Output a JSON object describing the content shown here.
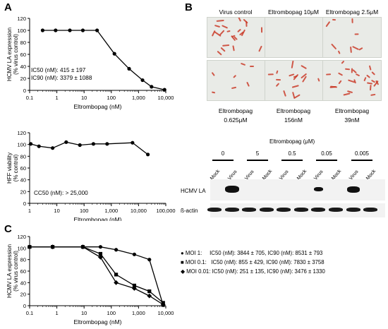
{
  "panels": {
    "A": "A",
    "B": "B",
    "C": "C"
  },
  "chart_data": [
    {
      "type": "line",
      "id": "A_top",
      "xlabel": "Eltrombopag (nM)",
      "ylabel": "HCMV LA expression\n(% virus control)",
      "xscale": "log",
      "xlim": [
        0.1,
        10000
      ],
      "ylim": [
        0,
        120
      ],
      "xticks": [
        "0.1",
        "1",
        "10",
        "100",
        "1,000",
        "10,000"
      ],
      "yticks": [
        "0",
        "20",
        "40",
        "60",
        "80",
        "100",
        "120"
      ],
      "series": [
        {
          "x": [
            0.3,
            0.9,
            3,
            9,
            30,
            130,
            450,
            1400,
            3000,
            9000
          ],
          "y": [
            100,
            100,
            100,
            100,
            100,
            61,
            36,
            17,
            6,
            1
          ]
        }
      ],
      "annotation_lines": [
        "IC50 (nM): 415 ± 197",
        "IC90 (nM): 3379 ± 1088"
      ]
    },
    {
      "type": "line",
      "id": "A_bottom",
      "xlabel": "Eltrombopag (nM)",
      "ylabel": "HFF viability\n(% control)",
      "xscale": "log",
      "xlim": [
        1,
        100000
      ],
      "ylim": [
        0,
        120
      ],
      "xticks": [
        "1",
        "10",
        "100",
        "1,000",
        "10,000",
        "100,000"
      ],
      "yticks": [
        "0",
        "20",
        "40",
        "60",
        "80",
        "100",
        "120"
      ],
      "series": [
        {
          "x": [
            1.1,
            2.2,
            7,
            22,
            70,
            220,
            700,
            6000,
            22000
          ],
          "y": [
            101,
            97,
            94,
            104,
            99,
            101,
            101,
            103,
            83
          ]
        }
      ],
      "annotation_lines": [
        "CC50 (nM): > 25,000"
      ]
    },
    {
      "type": "line",
      "id": "C",
      "xlabel": "Eltrombopag (nM)",
      "ylabel": "HCMV LA expression\n(% virus control)",
      "xscale": "log",
      "xlim": [
        0.1,
        10000
      ],
      "ylim": [
        0,
        120
      ],
      "xticks": [
        "0.1",
        "1",
        "10",
        "100",
        "1,000",
        "10,000"
      ],
      "yticks": [
        "0",
        "20",
        "40",
        "60",
        "80",
        "100",
        "120"
      ],
      "series": [
        {
          "name": "MOI 1:",
          "marker": "circle",
          "x": [
            0.1,
            0.7,
            9,
            40,
            150,
            700,
            2500,
            8000
          ],
          "y": [
            102,
            102,
            102,
            102,
            97,
            89,
            80,
            1
          ]
        },
        {
          "name": "MOI 0.1:",
          "marker": "square",
          "x": [
            0.1,
            0.7,
            9,
            40,
            150,
            700,
            2500,
            8000
          ],
          "y": [
            102,
            102,
            102,
            90,
            54,
            35,
            25,
            5
          ]
        },
        {
          "name": "MOI 0.01:",
          "marker": "diamond",
          "x": [
            0.1,
            0.7,
            9,
            40,
            150,
            700,
            2500,
            8000
          ],
          "y": [
            102,
            102,
            102,
            84,
            40,
            30,
            17,
            2
          ]
        }
      ],
      "legend": [
        {
          "moi": "MOI 1:",
          "text": "IC50 (nM): 3844 ± 705, IC90 (nM): 8531 ± 793"
        },
        {
          "moi": "MOI 0.1:",
          "text": "IC50 (nM): 855 ± 429, IC90 (nM): 7830 ± 3758"
        },
        {
          "moi": "MOI 0.01:",
          "text": "IC50 (nM): 251 ± 135, IC90 (nM): 3476 ± 1330"
        }
      ]
    }
  ],
  "micrographs": {
    "top_labels": [
      "Virus control",
      "Eltrombopag 10μM",
      "Eltrombopag 2.5μM"
    ],
    "bottom_labels": [
      {
        "l1": "Eltrombopag",
        "l2": "0.625μM"
      },
      {
        "l1": "Eltrombopag",
        "l2": "156nM"
      },
      {
        "l1": "Eltrombopag",
        "l2": "39nM"
      }
    ]
  },
  "western": {
    "header": "Eltrombopag (μM)",
    "concentrations": [
      "0",
      "5",
      "0.5",
      "0.05",
      "0.005"
    ],
    "lane_labels": [
      "Mock",
      "Virus",
      "Virus",
      "Mock",
      "Virus",
      "Mock",
      "Virus",
      "Mock",
      "Virus",
      "Mock"
    ],
    "row_labels": [
      "HCMV LA",
      "ß-actin"
    ]
  }
}
